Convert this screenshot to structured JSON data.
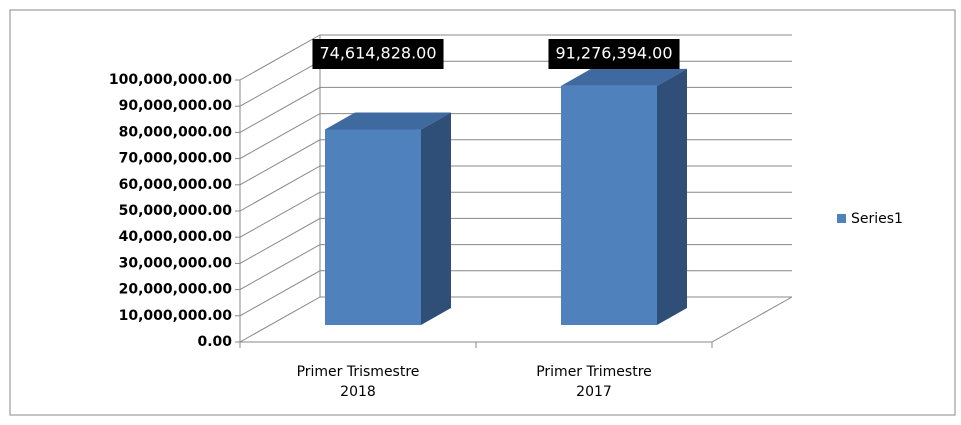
{
  "chart_data": {
    "type": "bar3d",
    "categories": [
      "Primer Trismestre 2018",
      "Primer Trimestre 2017"
    ],
    "series": [
      {
        "name": "Series1",
        "color": "#4f81bd",
        "values": [
          74614828,
          91276394
        ],
        "value_labels": [
          "74,614,828.00",
          "91,276,394.00"
        ]
      }
    ],
    "ylim": [
      0,
      100000000
    ],
    "yticks": [
      {
        "value": 0,
        "label": "0.00"
      },
      {
        "value": 10000000,
        "label": "10,000,000.00"
      },
      {
        "value": 20000000,
        "label": "20,000,000.00"
      },
      {
        "value": 30000000,
        "label": "30,000,000.00"
      },
      {
        "value": 40000000,
        "label": "40,000,000.00"
      },
      {
        "value": 50000000,
        "label": "50,000,000.00"
      },
      {
        "value": 60000000,
        "label": "60,000,000.00"
      },
      {
        "value": 70000000,
        "label": "70,000,000.00"
      },
      {
        "value": 80000000,
        "label": "80,000,000.00"
      },
      {
        "value": 90000000,
        "label": "90,000,000.00"
      },
      {
        "value": 100000000,
        "label": "100,000,000.00"
      }
    ],
    "grid": true,
    "legend": "right"
  }
}
